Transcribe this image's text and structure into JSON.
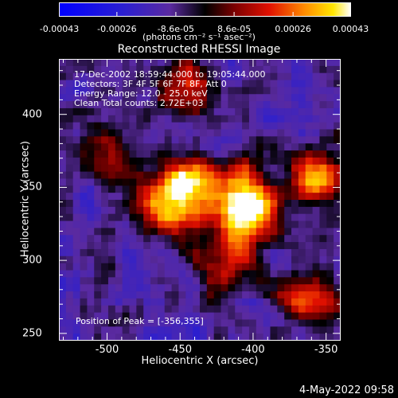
{
  "chart_data": {
    "type": "heatmap",
    "title": "Reconstructed RHESSI Image",
    "info_lines": [
      "17-Dec-2002 18:59:44.000 to 19:05:44.000",
      "Detectors: 3F 4F 5F 6F 7F 8F, Att 0",
      "Energy Range: 12.0 - 25.0 keV",
      "Clean     Total counts: 2.72E+03"
    ],
    "xlabel": "Heliocentric X (arcsec)",
    "ylabel": "Heliocentric Y (arcsec)",
    "xlim": [
      -533,
      -340
    ],
    "ylim": [
      245,
      438
    ],
    "xticks": [
      "-500",
      "-450",
      "-400",
      "-350"
    ],
    "xtick_values": [
      -500,
      -450,
      -400,
      -350
    ],
    "yticks": [
      "250",
      "300",
      "350",
      "400"
    ],
    "ytick_values": [
      250,
      300,
      350,
      400
    ],
    "peak_label": "Position of Peak = [-356,355]",
    "peak": [
      -356,
      355
    ],
    "colorbar": {
      "ticks": [
        "-0.00043",
        "-0.00026",
        "-8.6e-05",
        "8.6e-05",
        "0.00026",
        "0.00043"
      ],
      "tick_values": [
        -0.00043,
        -0.00026,
        -8.6e-05,
        8.6e-05,
        0.00026,
        0.00043
      ],
      "range": [
        -0.00043,
        0.00043
      ],
      "unit_label": "(photons cm⁻² s⁻¹ asec⁻²)"
    },
    "sources": [
      {
        "x": -443,
        "y": 352,
        "intensity": 0.95
      },
      {
        "x": -410,
        "y": 345,
        "intensity": 0.85
      },
      {
        "x": -460,
        "y": 335,
        "intensity": 0.8
      },
      {
        "x": -400,
        "y": 330,
        "intensity": 0.75
      },
      {
        "x": -356,
        "y": 355,
        "intensity": 1.0
      },
      {
        "x": -362,
        "y": 275,
        "intensity": 0.7
      },
      {
        "x": -445,
        "y": 420,
        "intensity": 0.55
      },
      {
        "x": -498,
        "y": 375,
        "intensity": 0.5
      },
      {
        "x": -420,
        "y": 300,
        "intensity": 0.55
      }
    ],
    "grid": false
  },
  "footer": {
    "date": "4-May-2022 09:58"
  },
  "colors": {
    "background": "#000000",
    "foreground": "#ffffff"
  }
}
